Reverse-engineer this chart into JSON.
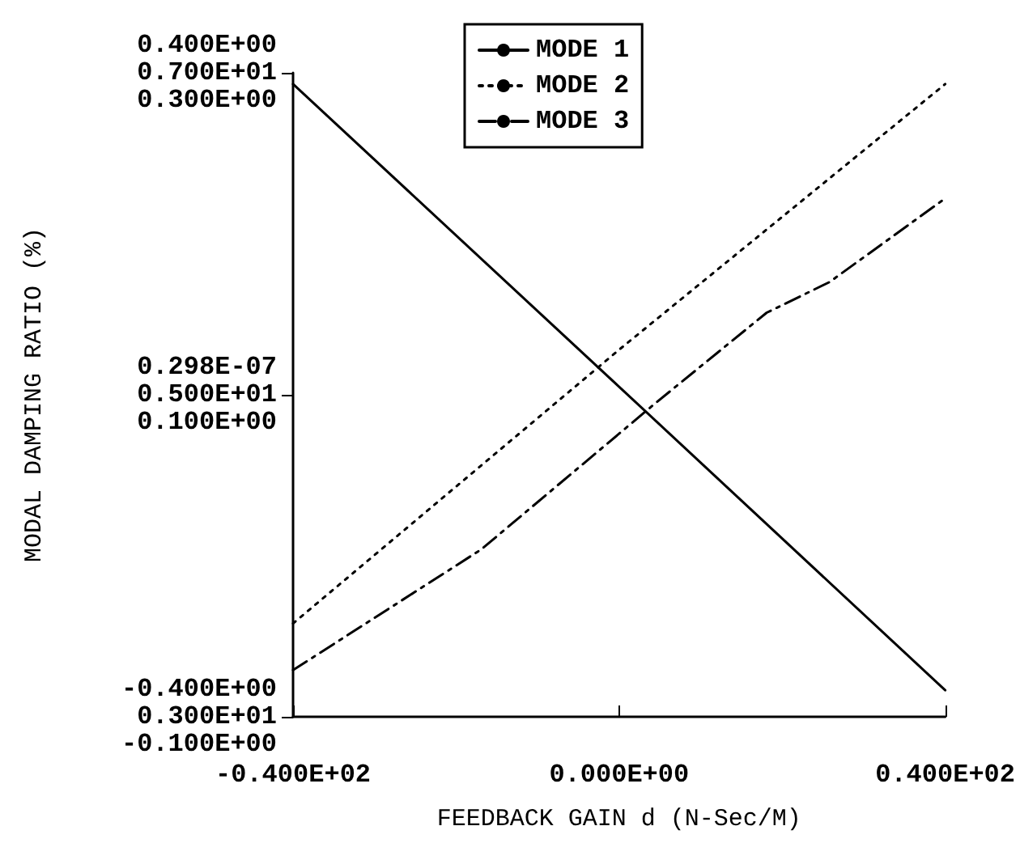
{
  "chart_data": {
    "type": "line",
    "xlabel": "FEEDBACK GAIN d (N-Sec/M)",
    "ylabel": "MODAL DAMPING RATIO (%)",
    "xlim": [
      -40,
      40
    ],
    "xticks": [
      {
        "value": -40,
        "label": "-0.400E+02"
      },
      {
        "value": 0,
        "label": "0.000E+00"
      },
      {
        "value": 40,
        "label": "0.400E+02"
      }
    ],
    "ylim": [
      -0.4,
      0.4
    ],
    "yticks": [
      {
        "value": -0.4,
        "label": "-0.400E+00"
      },
      {
        "value": 2.98e-08,
        "label": "0.298E-07"
      },
      {
        "value": 0.4,
        "label": "0.400E+00"
      }
    ],
    "y2lim": [
      3,
      7
    ],
    "y2ticks": [
      {
        "value": 3,
        "label": "0.300E+01"
      },
      {
        "value": 5,
        "label": "0.500E+01"
      },
      {
        "value": 7,
        "label": "0.700E+01"
      }
    ],
    "y3lim": [
      -0.1,
      0.3
    ],
    "y3ticks": [
      {
        "value": -0.1,
        "label": "-0.100E+00"
      },
      {
        "value": 0.1,
        "label": "0.100E+00"
      },
      {
        "value": 0.3,
        "label": "0.300E+00"
      }
    ],
    "legend": "top",
    "grid": false,
    "marker": "none",
    "series": [
      {
        "name": "MODE 1",
        "color": "#000000",
        "line_style": "solid",
        "x": [
          -40,
          0,
          40
        ],
        "values": [
          0.386,
          0.01,
          -0.367
        ]
      },
      {
        "name": "MODE 2",
        "color": "#000000",
        "line_style": "dotted",
        "axis": "y2",
        "x": [
          -40,
          0,
          40
        ],
        "values": [
          3.58,
          5.28,
          6.93
        ]
      },
      {
        "name": "MODE 3",
        "color": "#000000",
        "line_style": "dashed",
        "axis": "y3",
        "x": [
          -40,
          -16.9,
          4.5,
          18.1,
          25.8,
          40
        ],
        "values": [
          -0.071,
          0.004,
          0.095,
          0.151,
          0.17,
          0.222
        ]
      }
    ]
  }
}
